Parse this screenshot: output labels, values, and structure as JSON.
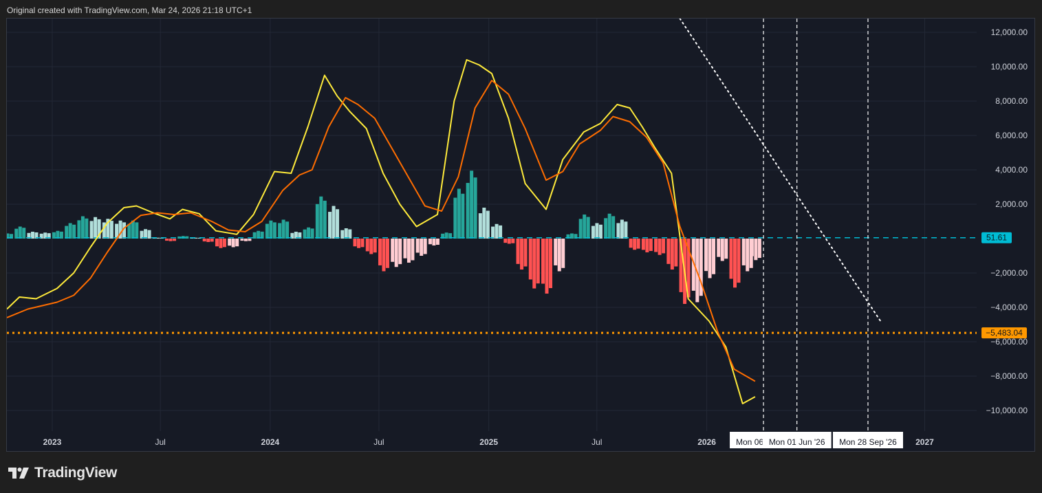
{
  "caption": "Original created with TradingView.com, Mar 24, 2026 21:18 UTC+1",
  "brand": {
    "name": "TradingView",
    "logo_icon": "tradingview-logo-icon"
  },
  "colors": {
    "background": "#161a25",
    "grid": "#232836",
    "axis_text": "#d1d4dc",
    "hist_pos_strong": "#26a69a",
    "hist_pos_weak": "#b2dfdb",
    "hist_neg_strong": "#ff5252",
    "hist_neg_weak": "#ffcdd2",
    "macd_line": "#ffeb3b",
    "signal_line": "#ff6d00",
    "zero_line_dash": "#00bcd4",
    "level_line": "#ff9800",
    "trend_line": "#ffffff"
  },
  "chart_data": {
    "type": "line",
    "ylim": [
      -11200,
      12800
    ],
    "grid": true,
    "y_ticks": [
      {
        "value": 12000,
        "label": "12,000.00"
      },
      {
        "value": 10000,
        "label": "10,000.00"
      },
      {
        "value": 8000,
        "label": "8,000.00"
      },
      {
        "value": 6000,
        "label": "6,000.00"
      },
      {
        "value": 4000,
        "label": "4,000.00"
      },
      {
        "value": 2000,
        "label": "2,000.00"
      },
      {
        "value": -2000,
        "label": "−2,000.00"
      },
      {
        "value": -4000,
        "label": "−4,000.00"
      },
      {
        "value": -6000,
        "label": "−6,000.00"
      },
      {
        "value": -8000,
        "label": "−8,000.00"
      },
      {
        "value": -10000,
        "label": "−10,000.00"
      }
    ],
    "x_range": [
      "2022-10-17",
      "2027-03-29"
    ],
    "x_ticks": [
      {
        "date": "2023-01-01",
        "label": "2023",
        "bold": true
      },
      {
        "date": "2023-07-01",
        "label": "Jul",
        "bold": false
      },
      {
        "date": "2024-01-01",
        "label": "2024",
        "bold": true
      },
      {
        "date": "2024-07-01",
        "label": "Jul",
        "bold": false
      },
      {
        "date": "2025-01-01",
        "label": "2025",
        "bold": true
      },
      {
        "date": "2025-07-01",
        "label": "Jul",
        "bold": false
      },
      {
        "date": "2026-01-01",
        "label": "2026",
        "bold": true
      },
      {
        "date": "2027-01-01",
        "label": "2027",
        "bold": true
      }
    ],
    "vertical_markers": [
      {
        "date": "2026-04-06",
        "label": "Mon 06"
      },
      {
        "date": "2026-06-01",
        "label": "Mon 01 Jun '26"
      },
      {
        "date": "2026-09-28",
        "label": "Mon 28 Sep '26"
      }
    ],
    "horizontal_levels": [
      {
        "value": 51.61,
        "label": "51.61",
        "style": "dashed",
        "color": "#00bcd4"
      },
      {
        "value": -5483.04,
        "label": "−5,483.04",
        "style": "dotted",
        "color": "#ff9800"
      }
    ],
    "trend_line": {
      "start": [
        "2025-11-17",
        12800
      ],
      "end": [
        "2026-10-19",
        -4800
      ]
    },
    "series": [
      {
        "role": "macd",
        "color": "#ffeb3b",
        "points": [
          [
            "2022-10-17",
            -4100
          ],
          [
            "2022-11-07",
            -3400
          ],
          [
            "2022-12-05",
            -3500
          ],
          [
            "2023-01-09",
            -2900
          ],
          [
            "2023-02-06",
            -2000
          ],
          [
            "2023-03-06",
            -500
          ],
          [
            "2023-04-03",
            900
          ],
          [
            "2023-05-01",
            1800
          ],
          [
            "2023-05-22",
            1900
          ],
          [
            "2023-06-19",
            1500
          ],
          [
            "2023-07-17",
            1150
          ],
          [
            "2023-08-07",
            1700
          ],
          [
            "2023-09-04",
            1450
          ],
          [
            "2023-10-02",
            450
          ],
          [
            "2023-11-06",
            250
          ],
          [
            "2023-12-04",
            1400
          ],
          [
            "2024-01-08",
            3900
          ],
          [
            "2024-02-05",
            3800
          ],
          [
            "2024-03-04",
            6500
          ],
          [
            "2024-04-01",
            9500
          ],
          [
            "2024-04-22",
            8300
          ],
          [
            "2024-05-13",
            7400
          ],
          [
            "2024-06-10",
            6400
          ],
          [
            "2024-07-08",
            3800
          ],
          [
            "2024-08-05",
            2000
          ],
          [
            "2024-09-02",
            700
          ],
          [
            "2024-10-07",
            1400
          ],
          [
            "2024-11-04",
            8000
          ],
          [
            "2024-11-25",
            10400
          ],
          [
            "2024-12-16",
            10100
          ],
          [
            "2025-01-06",
            9600
          ],
          [
            "2025-02-03",
            7000
          ],
          [
            "2025-03-03",
            3200
          ],
          [
            "2025-04-07",
            1700
          ],
          [
            "2025-05-05",
            4600
          ],
          [
            "2025-06-09",
            6200
          ],
          [
            "2025-07-07",
            6700
          ],
          [
            "2025-08-04",
            7800
          ],
          [
            "2025-08-25",
            7600
          ],
          [
            "2025-09-15",
            6500
          ],
          [
            "2025-10-06",
            5300
          ],
          [
            "2025-11-03",
            3800
          ],
          [
            "2025-12-01",
            -3500
          ],
          [
            "2026-01-05",
            -4800
          ],
          [
            "2026-02-02",
            -6300
          ],
          [
            "2026-03-02",
            -9600
          ],
          [
            "2026-03-23",
            -9200
          ]
        ]
      },
      {
        "role": "signal",
        "color": "#ff6d00",
        "points": [
          [
            "2022-10-17",
            -4600
          ],
          [
            "2022-11-21",
            -4100
          ],
          [
            "2023-01-09",
            -3700
          ],
          [
            "2023-02-06",
            -3300
          ],
          [
            "2023-03-06",
            -2300
          ],
          [
            "2023-04-03",
            -800
          ],
          [
            "2023-05-01",
            600
          ],
          [
            "2023-05-29",
            1350
          ],
          [
            "2023-06-26",
            1500
          ],
          [
            "2023-07-24",
            1400
          ],
          [
            "2023-08-21",
            1500
          ],
          [
            "2023-09-25",
            1000
          ],
          [
            "2023-10-23",
            500
          ],
          [
            "2023-11-20",
            400
          ],
          [
            "2023-12-18",
            1000
          ],
          [
            "2024-01-22",
            2800
          ],
          [
            "2024-02-19",
            3700
          ],
          [
            "2024-03-11",
            4000
          ],
          [
            "2024-04-08",
            6500
          ],
          [
            "2024-05-06",
            8200
          ],
          [
            "2024-05-27",
            7800
          ],
          [
            "2024-06-24",
            7000
          ],
          [
            "2024-07-22",
            5300
          ],
          [
            "2024-08-19",
            3600
          ],
          [
            "2024-09-16",
            1900
          ],
          [
            "2024-10-14",
            1600
          ],
          [
            "2024-11-11",
            3600
          ],
          [
            "2024-12-09",
            7600
          ],
          [
            "2025-01-06",
            9200
          ],
          [
            "2025-02-03",
            8400
          ],
          [
            "2025-03-03",
            6400
          ],
          [
            "2025-04-07",
            3400
          ],
          [
            "2025-05-05",
            3900
          ],
          [
            "2025-06-02",
            5500
          ],
          [
            "2025-07-07",
            6300
          ],
          [
            "2025-07-28",
            7100
          ],
          [
            "2025-08-25",
            6800
          ],
          [
            "2025-09-22",
            5900
          ],
          [
            "2025-10-20",
            4400
          ],
          [
            "2025-11-17",
            700
          ],
          [
            "2025-12-22",
            -2500
          ],
          [
            "2026-01-19",
            -5400
          ],
          [
            "2026-02-16",
            -7600
          ],
          [
            "2026-03-23",
            -8300
          ]
        ]
      },
      {
        "role": "histogram",
        "type": "bar",
        "points": [
          [
            "2022-10-17",
            300
          ],
          [
            "2022-11-07",
            700
          ],
          [
            "2022-11-28",
            400
          ],
          [
            "2022-12-19",
            350
          ],
          [
            "2023-01-09",
            450
          ],
          [
            "2023-01-30",
            900
          ],
          [
            "2023-02-20",
            1300
          ],
          [
            "2023-03-13",
            1250
          ],
          [
            "2023-04-03",
            1150
          ],
          [
            "2023-04-24",
            1050
          ],
          [
            "2023-05-15",
            1050
          ],
          [
            "2023-06-05",
            550
          ],
          [
            "2023-06-26",
            50
          ],
          [
            "2023-07-17",
            -150
          ],
          [
            "2023-08-07",
            150
          ],
          [
            "2023-08-28",
            50
          ],
          [
            "2023-09-18",
            -200
          ],
          [
            "2023-10-09",
            -550
          ],
          [
            "2023-10-30",
            -500
          ],
          [
            "2023-11-20",
            -150
          ],
          [
            "2023-12-11",
            450
          ],
          [
            "2024-01-01",
            1050
          ],
          [
            "2024-01-22",
            1100
          ],
          [
            "2024-02-12",
            400
          ],
          [
            "2024-03-04",
            650
          ],
          [
            "2024-03-25",
            2450
          ],
          [
            "2024-04-15",
            1900
          ],
          [
            "2024-05-06",
            600
          ],
          [
            "2024-05-27",
            -550
          ],
          [
            "2024-06-17",
            -900
          ],
          [
            "2024-07-08",
            -1900
          ],
          [
            "2024-07-29",
            -1650
          ],
          [
            "2024-08-19",
            -1400
          ],
          [
            "2024-09-09",
            -1000
          ],
          [
            "2024-09-30",
            -400
          ],
          [
            "2024-10-21",
            350
          ],
          [
            "2024-11-11",
            2900
          ],
          [
            "2024-12-02",
            3950
          ],
          [
            "2024-12-23",
            1800
          ],
          [
            "2025-01-13",
            850
          ],
          [
            "2025-02-03",
            -300
          ],
          [
            "2025-02-24",
            -1800
          ],
          [
            "2025-03-17",
            -2900
          ],
          [
            "2025-04-07",
            -3200
          ],
          [
            "2025-04-28",
            -1900
          ],
          [
            "2025-05-19",
            300
          ],
          [
            "2025-06-09",
            1400
          ],
          [
            "2025-06-30",
            900
          ],
          [
            "2025-07-21",
            1450
          ],
          [
            "2025-08-11",
            1100
          ],
          [
            "2025-09-01",
            -650
          ],
          [
            "2025-09-22",
            -800
          ],
          [
            "2025-10-13",
            -950
          ],
          [
            "2025-11-03",
            -1800
          ],
          [
            "2025-11-24",
            -3800
          ],
          [
            "2025-12-15",
            -3700
          ],
          [
            "2026-01-05",
            -2300
          ],
          [
            "2026-01-26",
            -1300
          ],
          [
            "2026-02-16",
            -2850
          ],
          [
            "2026-03-09",
            -1900
          ],
          [
            "2026-03-23",
            -1250
          ]
        ]
      }
    ]
  }
}
